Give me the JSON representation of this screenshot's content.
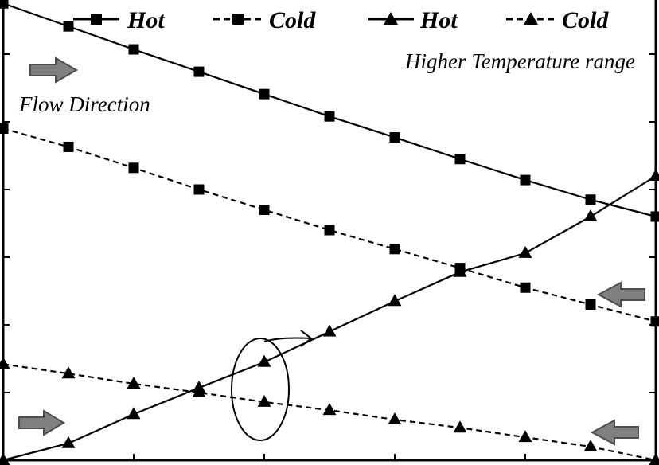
{
  "chart_data": {
    "type": "line",
    "title": "",
    "xlabel": "",
    "ylabel": "",
    "x": [
      0,
      1,
      2,
      3,
      4,
      5,
      6,
      7,
      8,
      9,
      10
    ],
    "xlim": [
      0,
      10
    ],
    "ylim": [
      0,
      6.8
    ],
    "grid": false,
    "legend_position": "top",
    "series": [
      {
        "name": "Hot",
        "marker": "square",
        "dash": "solid",
        "values": [
          6.75,
          6.41,
          6.07,
          5.74,
          5.41,
          5.08,
          4.77,
          4.45,
          4.14,
          3.85,
          3.6
        ]
      },
      {
        "name": "Cold",
        "marker": "square",
        "dash": "dashed",
        "values": [
          4.9,
          4.63,
          4.32,
          4.0,
          3.7,
          3.4,
          3.12,
          2.84,
          2.55,
          2.3,
          2.05
        ]
      },
      {
        "name": "Hot",
        "marker": "triangle",
        "dash": "solid",
        "values": [
          0.0,
          0.25,
          0.68,
          1.07,
          1.45,
          1.9,
          2.35,
          2.78,
          3.06,
          3.6,
          4.2
        ]
      },
      {
        "name": "Cold",
        "marker": "triangle",
        "dash": "dashed",
        "values": [
          1.42,
          1.28,
          1.13,
          1.0,
          0.86,
          0.74,
          0.6,
          0.48,
          0.34,
          0.2,
          0.0
        ]
      }
    ],
    "annotations": {
      "range_label": "Higher Temperature range",
      "flow_label": "Flow Direction"
    }
  },
  "colors": {
    "line": "#000000",
    "arrow_fill": "#808080",
    "arrow_stroke": "#4d4d4d",
    "background": "#ffffff"
  },
  "icons": [
    "flow-arrow-right-icon",
    "flow-arrow-left-icon",
    "circle-callout-icon"
  ]
}
